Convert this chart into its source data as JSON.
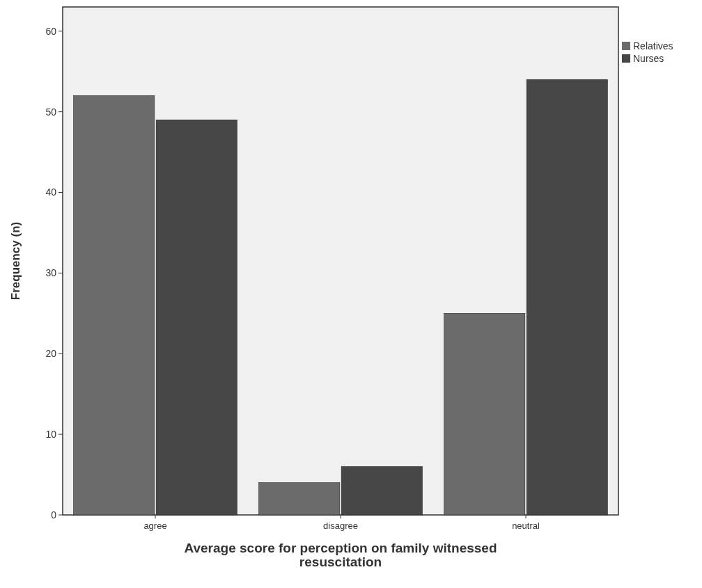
{
  "chart_data": {
    "type": "bar",
    "xlabel": "Average score for perception on family witnessed resuscitation",
    "ylabel": "Frequency (n)",
    "categories": [
      "agree",
      "disagree",
      "neutral"
    ],
    "series": [
      {
        "name": "Relatives",
        "color": "#6b6b6b",
        "values": [
          52,
          4,
          25
        ]
      },
      {
        "name": "Nurses",
        "color": "#474747",
        "values": [
          49,
          6,
          54
        ]
      }
    ],
    "ylim": [
      0,
      63
    ],
    "yticks": [
      0,
      10,
      20,
      30,
      40,
      50,
      60
    ],
    "grid": false,
    "legend": "top right"
  }
}
